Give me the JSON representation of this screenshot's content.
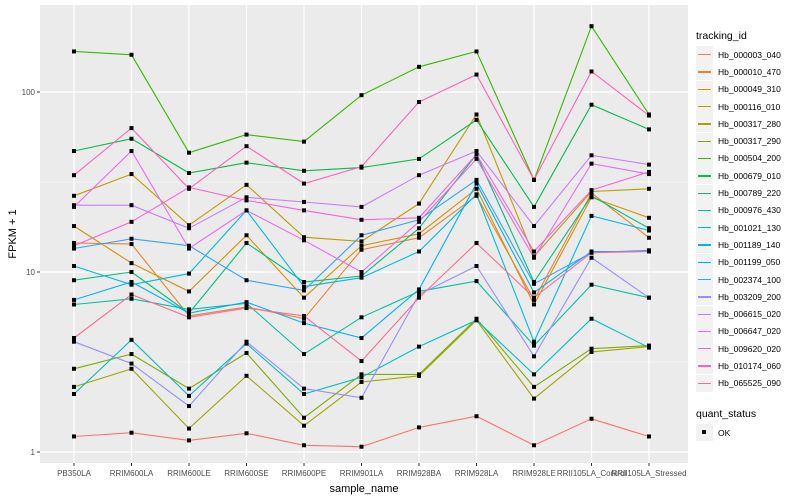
{
  "chart_data": {
    "type": "line",
    "title": "",
    "xlabel": "sample_name",
    "ylabel": "FPKM + 1",
    "yscale": "log10",
    "ylim": [
      0.9,
      280
    ],
    "yticks": [
      1,
      10,
      100
    ],
    "ytick_labels": [
      "1",
      "10",
      "100"
    ],
    "grid": true,
    "legend_position": "right",
    "categories": [
      "PB350LA",
      "RRIM600LA",
      "RRIM600LE",
      "RRIM600SE",
      "RRIM600PE",
      "RRIM901LA",
      "RRIM928BA",
      "RRIM928LA",
      "RRIM928LE",
      "RRII105LA_Control",
      "RRII105LA_Stressed"
    ],
    "legend_title": "tracking_id",
    "legend2_title": "quant_status",
    "legend2_items": [
      "OK"
    ],
    "series": [
      {
        "name": "Hb_000003_040",
        "color": "#F8766D",
        "values": [
          1.22,
          1.28,
          1.16,
          1.27,
          1.09,
          1.07,
          1.37,
          1.58,
          1.09,
          1.53,
          1.22
        ]
      },
      {
        "name": "Hb_000010_470",
        "color": "#EA8331",
        "values": [
          14.5,
          14.3,
          5.7,
          6.4,
          5.5,
          13.3,
          15.5,
          26.5,
          7.0,
          27.5,
          15.5
        ]
      },
      {
        "name": "Hb_000049_310",
        "color": "#D89000",
        "values": [
          18.0,
          11.2,
          7.8,
          16.0,
          7.2,
          14.0,
          16.3,
          29.0,
          6.6,
          26.0,
          20.0
        ]
      },
      {
        "name": "Hb_000116_010",
        "color": "#C09B00",
        "values": [
          26.5,
          35.0,
          18.2,
          30.5,
          15.6,
          14.8,
          24.0,
          75.0,
          12.2,
          28.0,
          29.0
        ]
      },
      {
        "name": "Hb_000317_280",
        "color": "#A3A500",
        "values": [
          2.3,
          2.9,
          1.35,
          2.65,
          1.4,
          2.45,
          2.65,
          5.4,
          1.98,
          3.6,
          3.85
        ]
      },
      {
        "name": "Hb_000317_290",
        "color": "#7CAE00",
        "values": [
          2.9,
          3.5,
          2.25,
          3.55,
          1.55,
          2.7,
          2.7,
          5.5,
          2.3,
          3.75,
          3.9
        ]
      },
      {
        "name": "Hb_000504_200",
        "color": "#39B600",
        "values": [
          168,
          161,
          46,
          58,
          53,
          96,
          138,
          168,
          32.5,
          232,
          75
        ]
      },
      {
        "name": "Hb_000679_010",
        "color": "#00BB4E",
        "values": [
          47,
          55,
          35.5,
          40.5,
          36.5,
          38,
          42.5,
          70,
          23,
          85,
          62
        ]
      },
      {
        "name": "Hb_000789_220",
        "color": "#00BF7D",
        "values": [
          9.0,
          10.0,
          5.9,
          14.5,
          8.8,
          9.5,
          17.5,
          45,
          8.8,
          26.5,
          17.5
        ]
      },
      {
        "name": "Hb_000976_430",
        "color": "#00C1A3",
        "values": [
          6.6,
          7.1,
          6.2,
          6.7,
          3.5,
          5.6,
          7.8,
          8.9,
          3.9,
          8.5,
          7.2
        ]
      },
      {
        "name": "Hb_001021_130",
        "color": "#00BFC4",
        "values": [
          2.1,
          4.2,
          2.05,
          4.0,
          2.1,
          2.6,
          3.85,
          5.4,
          2.7,
          5.5,
          3.8
        ]
      },
      {
        "name": "Hb_001189_140",
        "color": "#00BAE0",
        "values": [
          10.8,
          8.5,
          9.8,
          22.0,
          8.3,
          9.3,
          13.0,
          27.0,
          4.1,
          20.5,
          17.0
        ]
      },
      {
        "name": "Hb_001199_050",
        "color": "#00B0F6",
        "values": [
          7.0,
          8.8,
          5.9,
          6.8,
          5.2,
          4.3,
          8.0,
          31.0,
          7.7,
          13.0,
          13.0
        ]
      },
      {
        "name": "Hb_002374_100",
        "color": "#35A2FF",
        "values": [
          13.5,
          15.3,
          14.0,
          9.0,
          7.9,
          16.0,
          19.5,
          32.5,
          8.6,
          12.8,
          13.2
        ]
      },
      {
        "name": "Hb_003209_200",
        "color": "#9590FF",
        "values": [
          4.1,
          3.1,
          1.8,
          4.1,
          2.25,
          2.0,
          7.5,
          10.8,
          3.4,
          12.0,
          7.2
        ]
      },
      {
        "name": "Hb_006615_020",
        "color": "#C77CFF",
        "values": [
          23.5,
          23.5,
          17.5,
          26.0,
          24.5,
          23.0,
          34.5,
          47.0,
          18.0,
          44.5,
          39.5
        ]
      },
      {
        "name": "Hb_006647_020",
        "color": "#E76BF3",
        "values": [
          23.0,
          47.0,
          13.5,
          22.0,
          15.0,
          10.0,
          19.0,
          42.5,
          12.0,
          40.0,
          35.0
        ]
      },
      {
        "name": "Hb_009620_020",
        "color": "#FA62DB",
        "values": [
          14.0,
          19.0,
          29.5,
          25.0,
          22.0,
          19.5,
          20.0,
          45.0,
          13.0,
          28.5,
          36.0
        ]
      },
      {
        "name": "Hb_010174_060",
        "color": "#FF62BC",
        "values": [
          34.5,
          63.0,
          29.0,
          50.0,
          31.0,
          38.5,
          88.0,
          125,
          32.5,
          130,
          74.0
        ]
      },
      {
        "name": "Hb_065525_090",
        "color": "#FF6C91",
        "values": [
          4.3,
          7.5,
          5.6,
          6.3,
          5.7,
          3.2,
          7.2,
          14.5,
          7.2,
          12.8,
          13.0
        ]
      }
    ]
  }
}
